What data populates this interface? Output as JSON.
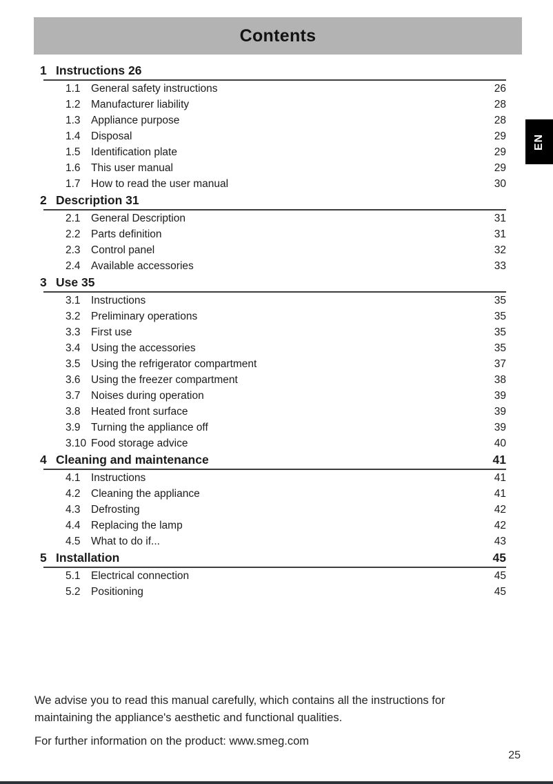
{
  "header": {
    "title": "Contents"
  },
  "language_tab": {
    "label": "EN"
  },
  "toc": {
    "sections": [
      {
        "num": "1",
        "title": "Instructions 26",
        "page": "",
        "entries": [
          {
            "num": "1.1",
            "title": "General safety instructions",
            "page": "26"
          },
          {
            "num": "1.2",
            "title": "Manufacturer liability",
            "page": "28"
          },
          {
            "num": "1.3",
            "title": "Appliance purpose",
            "page": "28"
          },
          {
            "num": "1.4",
            "title": "Disposal",
            "page": "29"
          },
          {
            "num": "1.5",
            "title": "Identification plate",
            "page": "29"
          },
          {
            "num": "1.6",
            "title": "This user manual",
            "page": "29"
          },
          {
            "num": "1.7",
            "title": "How to read the user manual",
            "page": "30"
          }
        ]
      },
      {
        "num": "2",
        "title": "Description 31",
        "page": "",
        "entries": [
          {
            "num": "2.1",
            "title": "General Description",
            "page": "31"
          },
          {
            "num": "2.2",
            "title": "Parts definition",
            "page": "31"
          },
          {
            "num": "2.3",
            "title": "Control panel",
            "page": "32"
          },
          {
            "num": "2.4",
            "title": "Available accessories",
            "page": "33"
          }
        ]
      },
      {
        "num": "3",
        "title": "Use 35",
        "page": "",
        "entries": [
          {
            "num": "3.1",
            "title": "Instructions",
            "page": "35"
          },
          {
            "num": "3.2",
            "title": "Preliminary operations",
            "page": "35"
          },
          {
            "num": "3.3",
            "title": "First use",
            "page": "35"
          },
          {
            "num": "3.4",
            "title": "Using the accessories",
            "page": "35"
          },
          {
            "num": "3.5",
            "title": "Using the refrigerator compartment",
            "page": "37"
          },
          {
            "num": "3.6",
            "title": "Using the freezer compartment",
            "page": "38"
          },
          {
            "num": "3.7",
            "title": "Noises during operation",
            "page": "39"
          },
          {
            "num": "3.8",
            "title": "Heated front surface",
            "page": "39"
          },
          {
            "num": "3.9",
            "title": "Turning the appliance off",
            "page": "39"
          },
          {
            "num": "3.10",
            "title": "Food storage advice",
            "page": "40"
          }
        ]
      },
      {
        "num": "4",
        "title": "Cleaning and maintenance",
        "page": "41",
        "entries": [
          {
            "num": "4.1",
            "title": "Instructions",
            "page": "41"
          },
          {
            "num": "4.2",
            "title": "Cleaning the appliance",
            "page": "41"
          },
          {
            "num": "4.3",
            "title": "Defrosting",
            "page": "42"
          },
          {
            "num": "4.4",
            "title": "Replacing the lamp",
            "page": "42"
          },
          {
            "num": "4.5",
            "title": "What to do if...",
            "page": "43"
          }
        ]
      },
      {
        "num": "5",
        "title": "Installation",
        "page": "45",
        "entries": [
          {
            "num": "5.1",
            "title": "Electrical connection",
            "page": "45"
          },
          {
            "num": "5.2",
            "title": "Positioning",
            "page": "45"
          }
        ]
      }
    ]
  },
  "footer": {
    "advice_line1": "We advise you to read this manual carefully, which contains all the instructions for",
    "advice_line2": "maintaining the appliance's aesthetic and functional qualities.",
    "info_line": "For further information on the product: www.smeg.com"
  },
  "page_number": "25",
  "colors": {
    "header_bg": "#b3b3b3",
    "text": "#1b1b1b",
    "tab_bg": "#000000",
    "tab_text": "#ffffff",
    "bottom_bar": "#2e3338"
  }
}
